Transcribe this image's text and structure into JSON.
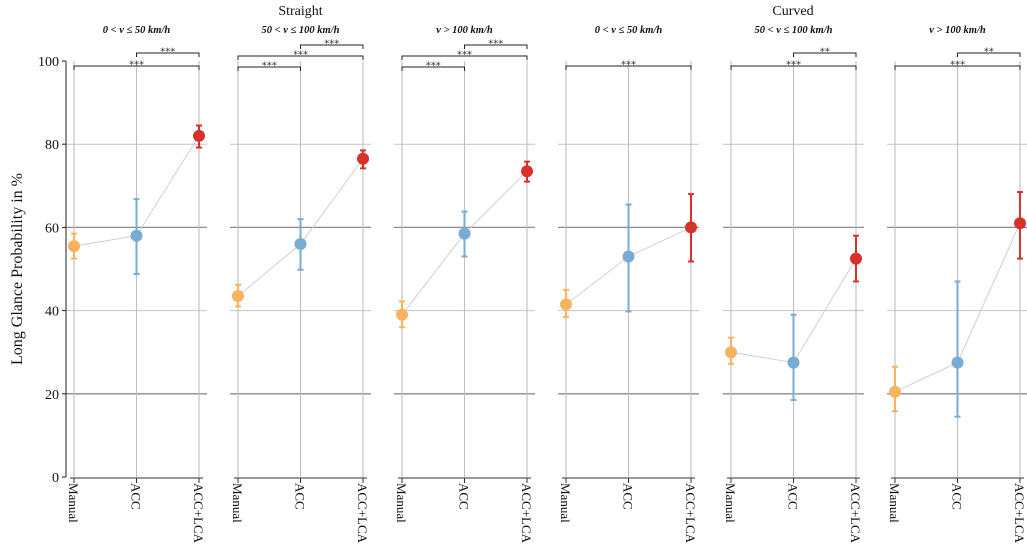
{
  "chart_data": {
    "type": "scatter",
    "ylabel": "Long Glance Probability in %",
    "ylim": [
      0,
      100
    ],
    "yticks": [
      0,
      20,
      40,
      60,
      80,
      100
    ],
    "categories": [
      "Manual",
      "ACC",
      "ACC+LCA"
    ],
    "colors": {
      "Manual": "#f9b35f",
      "ACC": "#79acd3",
      "ACC+LCA": "#d7312a"
    },
    "groups": [
      {
        "title": "Straight",
        "panels": [
          0,
          1,
          2
        ]
      },
      {
        "title": "Curved",
        "panels": [
          3,
          4,
          5
        ]
      }
    ],
    "panels": [
      {
        "title": "0 < v ≤ 50 km/h",
        "values": [
          55.5,
          58,
          82
        ],
        "lower": [
          52.5,
          48.8,
          79.2
        ],
        "upper": [
          58.5,
          66.8,
          84.5
        ],
        "significance": [
          {
            "from": 1,
            "to": 2,
            "label": "***"
          },
          {
            "from": 0,
            "to": 2,
            "label": "***"
          }
        ]
      },
      {
        "title": "50 < v ≤ 100 km/h",
        "values": [
          43.5,
          56,
          76.5
        ],
        "lower": [
          41,
          49.8,
          74.2
        ],
        "upper": [
          46.2,
          62,
          78.5
        ],
        "significance": [
          {
            "from": 1,
            "to": 2,
            "label": "***"
          },
          {
            "from": 0,
            "to": 2,
            "label": "***"
          },
          {
            "from": 0,
            "to": 1,
            "label": "***"
          }
        ]
      },
      {
        "title": "v > 100 km/h",
        "values": [
          39,
          58.5,
          73.5
        ],
        "lower": [
          36,
          53,
          71
        ],
        "upper": [
          42.2,
          63.8,
          75.8
        ],
        "significance": [
          {
            "from": 1,
            "to": 2,
            "label": "***"
          },
          {
            "from": 0,
            "to": 2,
            "label": "***"
          },
          {
            "from": 0,
            "to": 1,
            "label": "***"
          }
        ]
      },
      {
        "title": "0 < v ≤ 50 km/h",
        "values": [
          41.5,
          53,
          60
        ],
        "lower": [
          38.5,
          39.8,
          51.8
        ],
        "upper": [
          45,
          65.5,
          68
        ],
        "significance": [
          {
            "from": 0,
            "to": 2,
            "label": "***"
          }
        ]
      },
      {
        "title": "50 < v ≤ 100 km/h",
        "values": [
          30,
          27.5,
          52.5
        ],
        "lower": [
          27.2,
          18.5,
          47
        ],
        "upper": [
          33.5,
          39,
          58
        ],
        "significance": [
          {
            "from": 1,
            "to": 2,
            "label": "**"
          },
          {
            "from": 0,
            "to": 2,
            "label": "***"
          }
        ]
      },
      {
        "title": "v > 100 km/h",
        "values": [
          20.5,
          27.5,
          61
        ],
        "lower": [
          15.8,
          14.5,
          52.5
        ],
        "upper": [
          26.5,
          47,
          68.5
        ],
        "significance": [
          {
            "from": 1,
            "to": 2,
            "label": "**"
          },
          {
            "from": 0,
            "to": 2,
            "label": "***"
          }
        ]
      }
    ]
  }
}
